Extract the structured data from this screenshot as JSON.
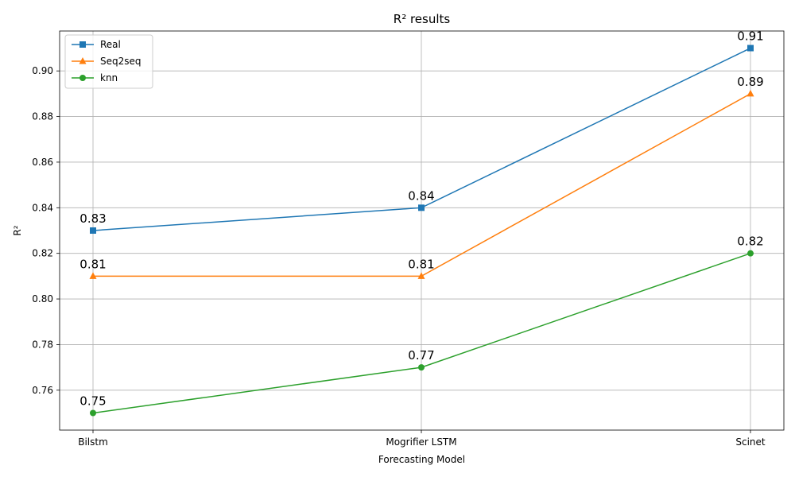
{
  "chart_data": {
    "type": "line",
    "title": "R² results",
    "xlabel": "Forecasting Model",
    "ylabel": "R²",
    "categories": [
      "Bilstm",
      "Mogrifier LSTM",
      "Scinet"
    ],
    "ylim": [
      0.7425,
      0.9175
    ],
    "yticks": [
      "0.76",
      "0.78",
      "0.80",
      "0.82",
      "0.84",
      "0.86",
      "0.88",
      "0.90"
    ],
    "grid": true,
    "legend_position": "upper-left",
    "series": [
      {
        "name": "Real",
        "values": [
          0.83,
          0.84,
          0.91
        ],
        "labels": [
          "0.83",
          "0.84",
          "0.91"
        ],
        "color": "#1f77b4",
        "marker": "square"
      },
      {
        "name": "Seq2seq",
        "values": [
          0.81,
          0.81,
          0.89
        ],
        "labels": [
          "0.81",
          "0.81",
          "0.89"
        ],
        "color": "#ff7f0e",
        "marker": "triangle"
      },
      {
        "name": "knn",
        "values": [
          0.75,
          0.77,
          0.82
        ],
        "labels": [
          "0.75",
          "0.77",
          "0.82"
        ],
        "color": "#2ca02c",
        "marker": "circle"
      }
    ]
  }
}
